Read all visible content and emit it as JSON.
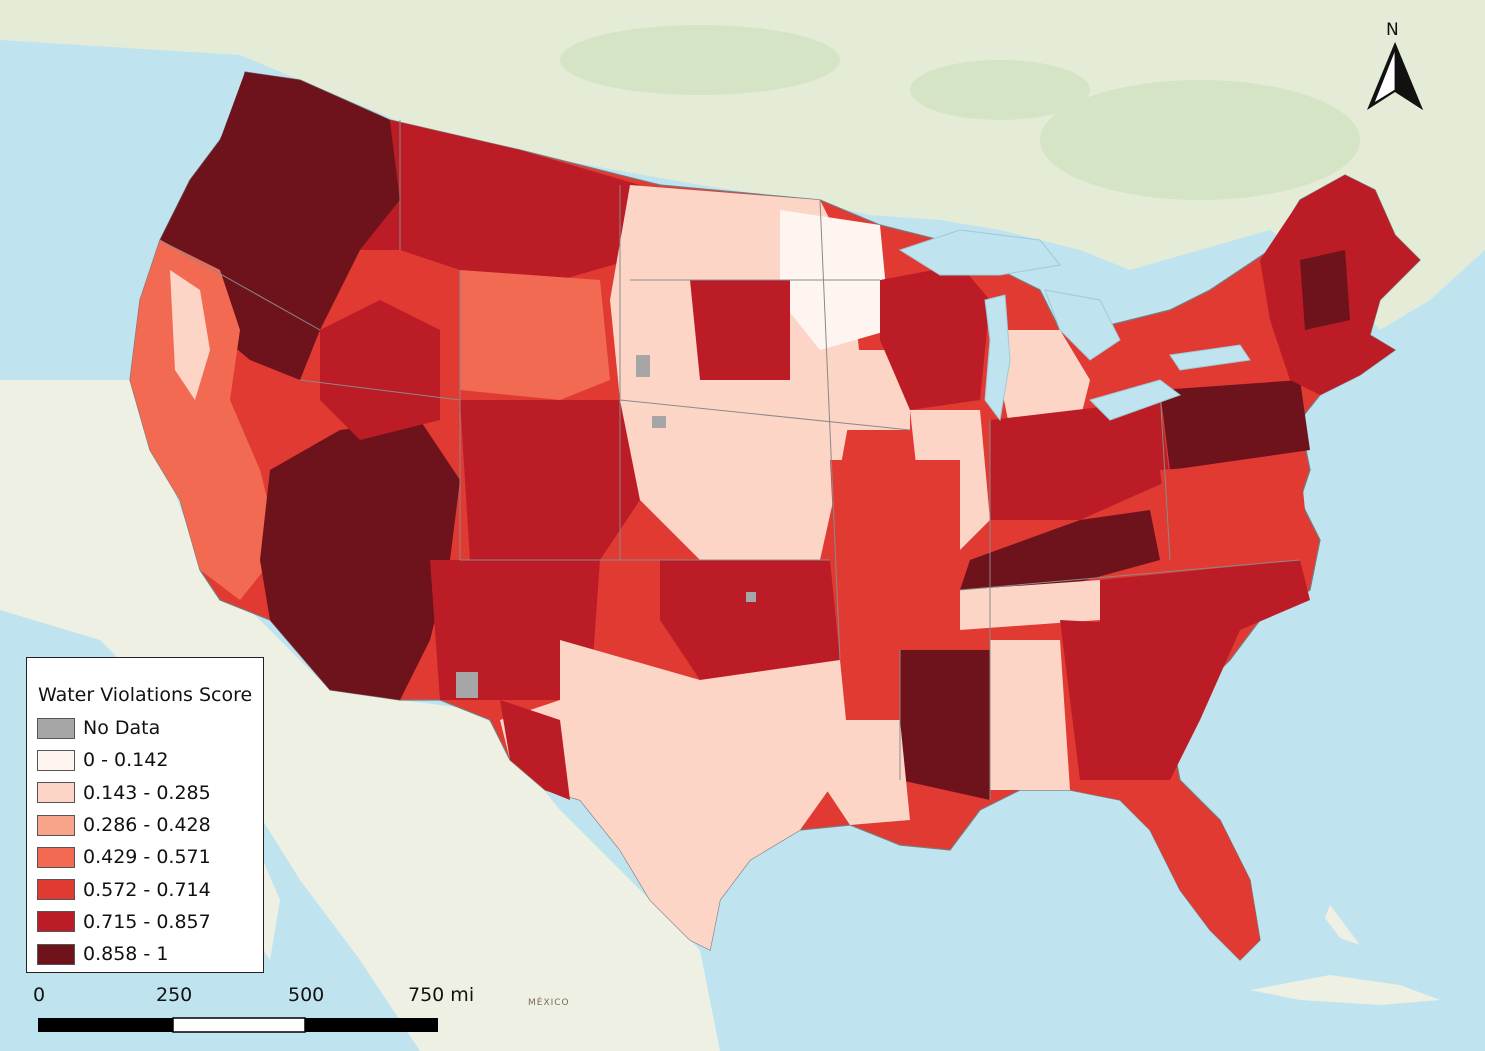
{
  "legend": {
    "title": "Water Violations Score",
    "items": [
      {
        "label": "No Data",
        "color": "#a6a6a6"
      },
      {
        "label": "0 - 0.142",
        "color": "#fff5f0"
      },
      {
        "label": "0.143 - 0.285",
        "color": "#fcd5c6"
      },
      {
        "label": "0.286 - 0.428",
        "color": "#f7a48a"
      },
      {
        "label": "0.429 - 0.571",
        "color": "#f26a52"
      },
      {
        "label": "0.572 - 0.714",
        "color": "#e03a33"
      },
      {
        "label": "0.715 - 0.857",
        "color": "#bb1c25"
      },
      {
        "label": "0.858 - 1",
        "color": "#6e121b"
      }
    ]
  },
  "scale_bar": {
    "ticks": [
      "0",
      "250",
      "500",
      "750 mi"
    ]
  },
  "north_arrow": {
    "label": "N"
  },
  "basemap": {
    "place_label": "MÉXICO",
    "water_color": "#bfe3ef",
    "land_color": "#eef0e4",
    "forest_color": "#dfe9cf"
  }
}
